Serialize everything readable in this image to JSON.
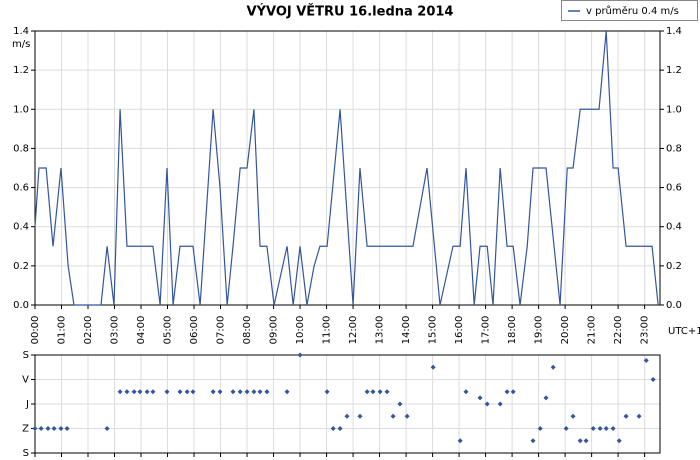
{
  "chart_data": [
    {
      "type": "line",
      "title": "VÝVOJ VĚTRU  16.ledna 2014",
      "y_label": "m/s",
      "x_label": "UTC+1",
      "xlim": [
        0,
        23.58
      ],
      "xticks": [
        {
          "value": 0,
          "label": "00:00"
        },
        {
          "value": 1,
          "label": "01:00"
        },
        {
          "value": 2,
          "label": "02:00"
        },
        {
          "value": 3,
          "label": "03:00"
        },
        {
          "value": 4,
          "label": "04:00"
        },
        {
          "value": 5,
          "label": "05:00"
        },
        {
          "value": 6,
          "label": "06:00"
        },
        {
          "value": 7,
          "label": "07:00"
        },
        {
          "value": 8,
          "label": "08:00"
        },
        {
          "value": 9,
          "label": "09:00"
        },
        {
          "value": 10,
          "label": "10:00"
        },
        {
          "value": 11,
          "label": "11:00"
        },
        {
          "value": 12,
          "label": "12:00"
        },
        {
          "value": 13,
          "label": "13:00"
        },
        {
          "value": 14,
          "label": "14:00"
        },
        {
          "value": 15,
          "label": "15:00"
        },
        {
          "value": 16,
          "label": "16:00"
        },
        {
          "value": 17,
          "label": "17:00"
        },
        {
          "value": 18,
          "label": "18:00"
        },
        {
          "value": 19,
          "label": "19:00"
        },
        {
          "value": 20,
          "label": "20:00"
        },
        {
          "value": 21,
          "label": "21:00"
        },
        {
          "value": 22,
          "label": "22:00"
        },
        {
          "value": 23,
          "label": "23:00"
        }
      ],
      "ylim": [
        0,
        1.4
      ],
      "yticks": [
        {
          "value": 0,
          "label": "0.0"
        },
        0.2,
        0.4,
        0.6,
        0.8,
        {
          "value": 1,
          "label": "1.0"
        },
        1.2,
        1.4
      ],
      "grid": true,
      "legend": "top-right",
      "series": [
        {
          "name": "v průměru 0.4 m/s",
          "color": "#3355a0",
          "x": [
            0,
            0.15,
            0.42,
            0.68,
            0.98,
            1.25,
            1.47,
            2.49,
            2.72,
            2.98,
            3.21,
            3.47,
            4.45,
            4.72,
            4.98,
            5.21,
            5.47,
            5.96,
            6.23,
            6.72,
            6.98,
            7.25,
            7.47,
            7.74,
            8.0,
            8.26,
            8.49,
            8.75,
            9.02,
            9.51,
            9.74,
            10.0,
            10.26,
            10.53,
            10.75,
            11.02,
            11.51,
            12.0,
            12.26,
            12.53,
            14.26,
            14.79,
            15.28,
            15.77,
            16.04,
            16.26,
            16.57,
            16.79,
            17.06,
            17.28,
            17.55,
            17.81,
            18.04,
            18.3,
            18.57,
            18.79,
            19.28,
            19.81,
            20.08,
            20.3,
            20.57,
            21.28,
            21.55,
            21.81,
            22.0,
            22.3,
            23.28,
            23.51
          ],
          "values": [
            0.4,
            0.7,
            0.7,
            0.3,
            0.7,
            0.2,
            0,
            0,
            0.3,
            0,
            1.0,
            0.3,
            0.3,
            0,
            0.7,
            0,
            0.3,
            0.3,
            0,
            1.0,
            0.6,
            0,
            0.3,
            0.7,
            0.7,
            1.0,
            0.3,
            0.3,
            0,
            0.3,
            0,
            0.3,
            0,
            0.2,
            0.3,
            0.3,
            1.0,
            0,
            0.7,
            0.3,
            0.3,
            0.7,
            0,
            0.3,
            0.3,
            0.7,
            0,
            0.3,
            0.3,
            0,
            0.7,
            0.3,
            0.3,
            0,
            0.3,
            0.7,
            0.7,
            0,
            0.7,
            0.7,
            1.0,
            1.0,
            1.4,
            0.7,
            0.7,
            0.3,
            0.3,
            0
          ]
        }
      ]
    },
    {
      "type": "scatter",
      "xlim": [
        0,
        23.58
      ],
      "xticks": [
        0,
        1,
        2,
        3,
        4,
        5,
        6,
        7,
        8,
        9,
        10,
        11,
        12,
        13,
        14,
        15,
        16,
        17,
        18,
        19,
        20,
        21,
        22,
        23
      ],
      "ylim": [
        360,
        0
      ],
      "yticks": [
        {
          "value": 0,
          "label": "S"
        },
        {
          "value": 90,
          "label": "V"
        },
        {
          "value": 180,
          "label": "J"
        },
        {
          "value": 270,
          "label": "Z"
        },
        {
          "value": 360,
          "label": "S"
        }
      ],
      "grid": true,
      "series": [
        {
          "color": "#3355a0",
          "x": [
            0,
            0.23,
            0.49,
            0.72,
            0.98,
            1.21,
            2.72,
            3.21,
            3.47,
            3.74,
            3.96,
            4.23,
            4.45,
            4.98,
            5.47,
            5.74,
            5.96,
            6.72,
            6.98,
            7.47,
            7.74,
            8.0,
            8.26,
            8.49,
            8.75,
            9.51,
            10.0,
            11.02,
            11.25,
            11.51,
            11.77,
            12.26,
            12.53,
            12.75,
            13.02,
            13.28,
            13.51,
            13.77,
            14.04,
            15.02,
            16.04,
            16.26,
            16.79,
            17.06,
            17.55,
            17.81,
            18.04,
            18.79,
            19.06,
            19.28,
            19.55,
            20.04,
            20.3,
            20.57,
            20.79,
            21.06,
            21.32,
            21.55,
            21.81,
            22.04,
            22.3,
            22.79,
            23.06,
            23.32
          ],
          "values": [
            270,
            270,
            270,
            270,
            270,
            270,
            270,
            135,
            135,
            135,
            135,
            135,
            135,
            135,
            135,
            135,
            135,
            135,
            135,
            135,
            135,
            135,
            135,
            135,
            135,
            135,
            0,
            135,
            270,
            270,
            225,
            225,
            135,
            135,
            135,
            135,
            225,
            180,
            225,
            45,
            315,
            135,
            157.5,
            180,
            180,
            135,
            135,
            315,
            270,
            157.5,
            45,
            270,
            225,
            315,
            315,
            270,
            270,
            270,
            270,
            315,
            225,
            225,
            20,
            90
          ]
        }
      ]
    }
  ]
}
